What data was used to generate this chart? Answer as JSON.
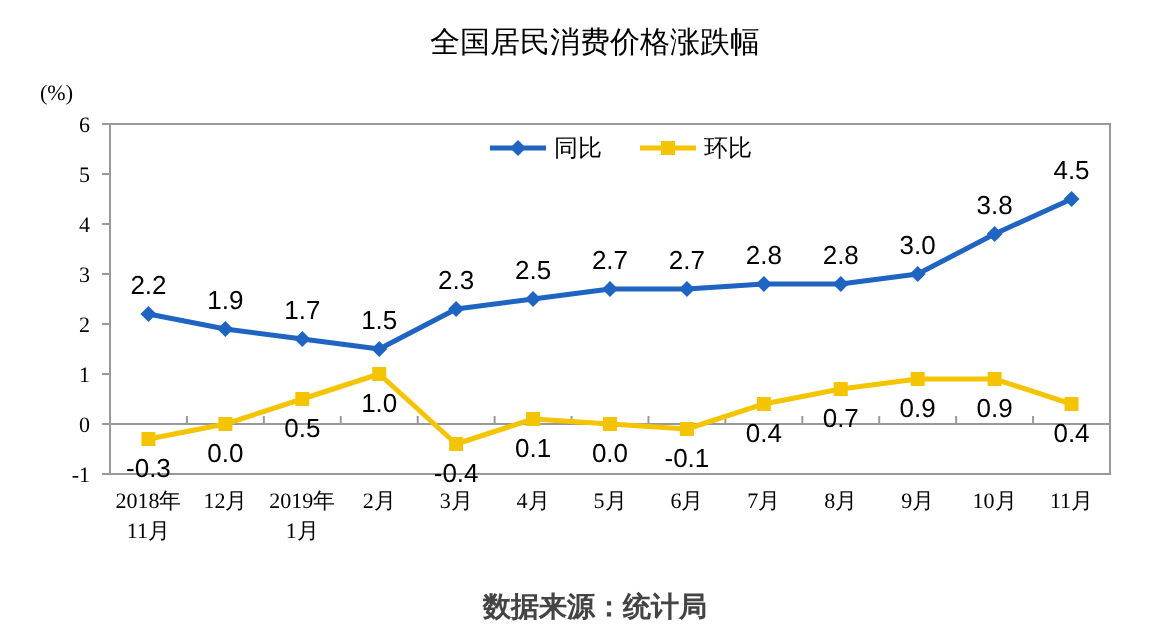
{
  "chart_data": {
    "type": "line",
    "title": "全国居民消费价格涨跌幅",
    "ylabel": "(%)",
    "categories": [
      "2018年\n11月",
      "12月",
      "2019年\n1月",
      "2月",
      "3月",
      "4月",
      "5月",
      "6月",
      "7月",
      "8月",
      "9月",
      "10月",
      "11月"
    ],
    "series": [
      {
        "name": "同比",
        "color": "#1f64c0",
        "marker": "diamond",
        "values": [
          2.2,
          1.9,
          1.7,
          1.5,
          2.3,
          2.5,
          2.7,
          2.7,
          2.8,
          2.8,
          3.0,
          3.8,
          4.5
        ],
        "value_labels": [
          "2.2",
          "1.9",
          "1.7",
          "1.5",
          "2.3",
          "2.5",
          "2.7",
          "2.7",
          "2.8",
          "2.8",
          "3.0",
          "3.8",
          "4.5"
        ]
      },
      {
        "name": "环比",
        "color": "#f5c400",
        "marker": "square",
        "values": [
          -0.3,
          0.0,
          0.5,
          1.0,
          -0.4,
          0.1,
          0.0,
          -0.1,
          0.4,
          0.7,
          0.9,
          0.9,
          0.4
        ],
        "value_labels": [
          "-0.3",
          "0.0",
          "0.5",
          "1.0",
          "-0.4",
          "0.1",
          "0.0",
          "-0.1",
          "0.4",
          "0.7",
          "0.9",
          "0.9",
          "0.4"
        ]
      }
    ],
    "ylim": [
      -1,
      6
    ],
    "yticks": [
      -1,
      0,
      1,
      2,
      3,
      4,
      5,
      6
    ],
    "legend": "top",
    "line_style": "solid",
    "annotations": [
      "数据来源：统计局"
    ]
  }
}
